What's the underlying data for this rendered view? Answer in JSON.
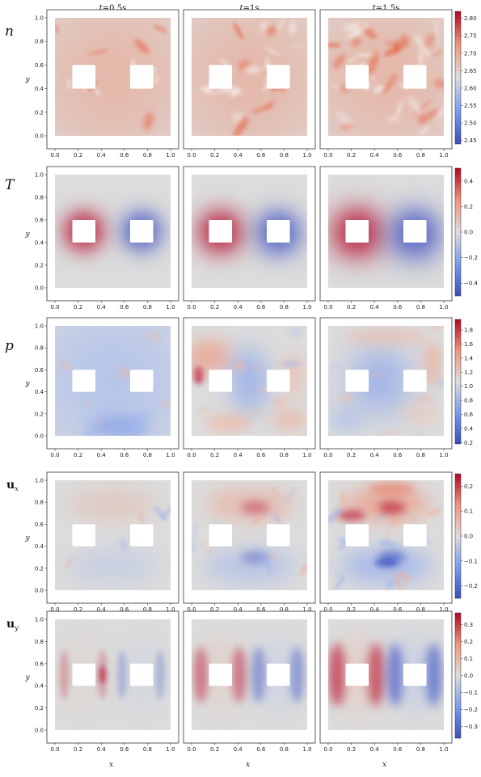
{
  "column_titles": [
    {
      "t": "t",
      "rest": "=0.5s"
    },
    {
      "t": "t",
      "rest": "=1s"
    },
    {
      "t": "t",
      "rest": "=1.5s"
    }
  ],
  "row_labels": [
    {
      "main": "n",
      "sub": "",
      "style": "italic"
    },
    {
      "main": "T",
      "sub": "",
      "style": "italic"
    },
    {
      "main": "p",
      "sub": "",
      "style": "italic"
    },
    {
      "main": "u",
      "sub": "x",
      "style": "bold"
    },
    {
      "main": "u",
      "sub": "y",
      "style": "bold"
    }
  ],
  "xlabel": "x",
  "ylabel": "y",
  "colors": {
    "low": "#3a4cc0",
    "mid": "#dcdcdc",
    "high": "#b40426",
    "background": "#ffffff",
    "frame": "#333333"
  },
  "chart_data": [
    {
      "type": "heatmap",
      "field": "n",
      "colormap": "coolwarm",
      "xlim": [
        0,
        1
      ],
      "ylim": [
        0,
        1
      ],
      "xticks": [
        "0.0",
        "0.2",
        "0.4",
        "0.6",
        "0.8",
        "1.0"
      ],
      "yticks": [
        "0.0",
        "0.2",
        "0.4",
        "0.6",
        "0.8",
        "1.0"
      ],
      "colorbar": {
        "min": 2.44,
        "max": 2.82,
        "ticks": [
          "2.45",
          "2.50",
          "2.55",
          "2.60",
          "2.65",
          "2.70",
          "2.75",
          "2.80"
        ]
      },
      "obstacles": [
        {
          "x": [
            0.15,
            0.35
          ],
          "y": [
            0.4,
            0.6
          ]
        },
        {
          "x": [
            0.65,
            0.85
          ],
          "y": [
            0.4,
            0.6
          ]
        }
      ],
      "times": [
        "t=0.5s",
        "t=1s",
        "t=1.5s"
      ]
    },
    {
      "type": "heatmap",
      "field": "T",
      "colormap": "coolwarm",
      "xlim": [
        0,
        1
      ],
      "ylim": [
        0,
        1
      ],
      "xticks": [
        "0.0",
        "0.2",
        "0.4",
        "0.6",
        "0.8",
        "1.0"
      ],
      "yticks": [
        "0.0",
        "0.2",
        "0.4",
        "0.6",
        "0.8",
        "1.0"
      ],
      "colorbar": {
        "min": -0.5,
        "max": 0.5,
        "ticks": [
          "0.4",
          "0.2",
          "0.0",
          "−0.2",
          "−0.4"
        ]
      },
      "obstacles": [
        {
          "x": [
            0.15,
            0.35
          ],
          "y": [
            0.4,
            0.6
          ]
        },
        {
          "x": [
            0.65,
            0.85
          ],
          "y": [
            0.4,
            0.6
          ]
        }
      ],
      "times": [
        "t=0.5s",
        "t=1s",
        "t=1.5s"
      ]
    },
    {
      "type": "heatmap",
      "field": "p",
      "colormap": "coolwarm",
      "xlim": [
        0,
        1
      ],
      "ylim": [
        0,
        1
      ],
      "xticks": [
        "0.0",
        "0.2",
        "0.4",
        "0.6",
        "0.8",
        "1.0"
      ],
      "yticks": [
        "0.0",
        "0.2",
        "0.4",
        "0.6",
        "0.8",
        "1.0"
      ],
      "colorbar": {
        "min": 0.18,
        "max": 1.95,
        "ticks": [
          "1.8",
          "1.6",
          "1.4",
          "1.2",
          "1.0",
          "0.8",
          "0.6",
          "0.4",
          "0.2"
        ]
      },
      "obstacles": [
        {
          "x": [
            0.15,
            0.35
          ],
          "y": [
            0.4,
            0.6
          ]
        },
        {
          "x": [
            0.65,
            0.85
          ],
          "y": [
            0.4,
            0.6
          ]
        }
      ],
      "times": [
        "t=0.5s",
        "t=1s",
        "t=1.5s"
      ]
    },
    {
      "type": "heatmap",
      "field": "u_x",
      "colormap": "coolwarm",
      "xlim": [
        0,
        1
      ],
      "ylim": [
        0,
        1
      ],
      "xticks": [
        "0.0",
        "0.2",
        "0.4",
        "0.6",
        "0.8",
        "1.0"
      ],
      "yticks": [
        "0.0",
        "0.2",
        "0.4",
        "0.6",
        "0.8",
        "1.0"
      ],
      "colorbar": {
        "min": -0.25,
        "max": 0.25,
        "ticks": [
          "0.2",
          "0.1",
          "0.0",
          "−0.1",
          "−0.2"
        ]
      },
      "obstacles": [
        {
          "x": [
            0.15,
            0.35
          ],
          "y": [
            0.4,
            0.6
          ]
        },
        {
          "x": [
            0.65,
            0.85
          ],
          "y": [
            0.4,
            0.6
          ]
        }
      ],
      "times": [
        "t=0.5s",
        "t=1s",
        "t=1.5s"
      ]
    },
    {
      "type": "heatmap",
      "field": "u_y",
      "colormap": "coolwarm",
      "xlim": [
        0,
        1
      ],
      "ylim": [
        0,
        1
      ],
      "xticks": [
        "0.0",
        "0.2",
        "0.4",
        "0.6",
        "0.8",
        "1.0"
      ],
      "yticks": [
        "0.0",
        "0.2",
        "0.4",
        "0.6",
        "0.8",
        "1.0"
      ],
      "colorbar": {
        "min": -0.37,
        "max": 0.37,
        "ticks": [
          "0.3",
          "0.2",
          "0.1",
          "0.0",
          "−0.1",
          "−0.2",
          "−0.3"
        ]
      },
      "obstacles": [
        {
          "x": [
            0.15,
            0.35
          ],
          "y": [
            0.4,
            0.6
          ]
        },
        {
          "x": [
            0.65,
            0.85
          ],
          "y": [
            0.4,
            0.6
          ]
        }
      ],
      "times": [
        "t=0.5s",
        "t=1s",
        "t=1.5s"
      ]
    }
  ]
}
